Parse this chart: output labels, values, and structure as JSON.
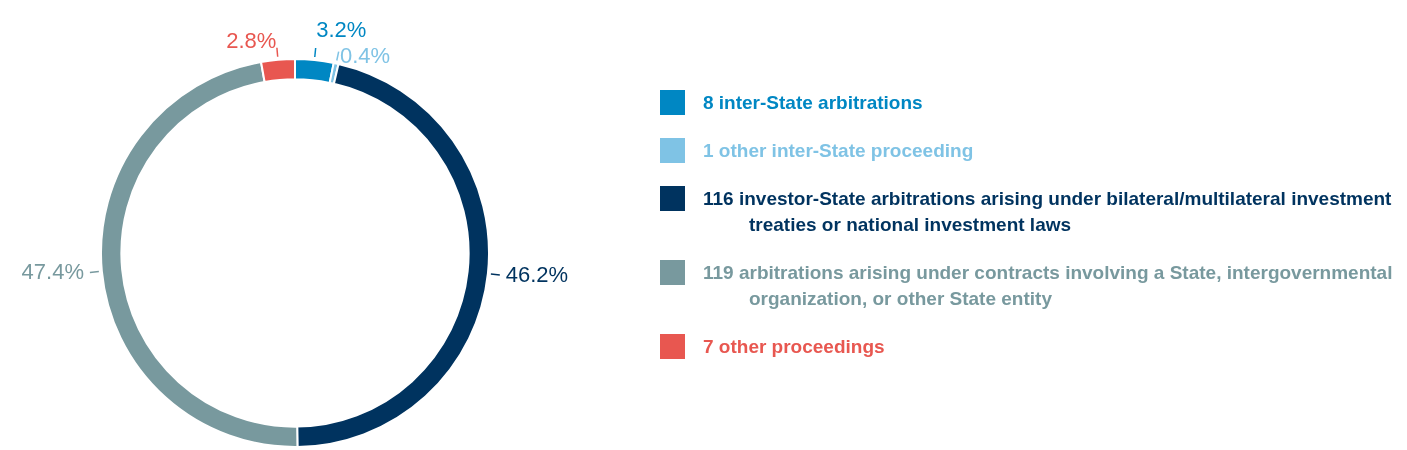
{
  "chart_data": {
    "type": "donut",
    "categories": [
      "8 inter-State arbitrations",
      "1 other inter-State proceeding",
      "116 investor-State arbitrations arising under bilateral/multilateral investment treaties or national investment laws",
      "119 arbitrations arising under contracts involving a State, intergovernmental organization, or other State entity",
      "7 other proceedings"
    ],
    "values": [
      3.2,
      0.4,
      46.2,
      47.4,
      2.8
    ],
    "colors": [
      "#0087c3",
      "#7fc3e5",
      "#00335f",
      "#78999e",
      "#e85750"
    ],
    "value_labels": [
      "3.2%",
      "0.4%",
      "46.2%",
      "47.4%",
      "2.8%"
    ],
    "legend": "right"
  }
}
